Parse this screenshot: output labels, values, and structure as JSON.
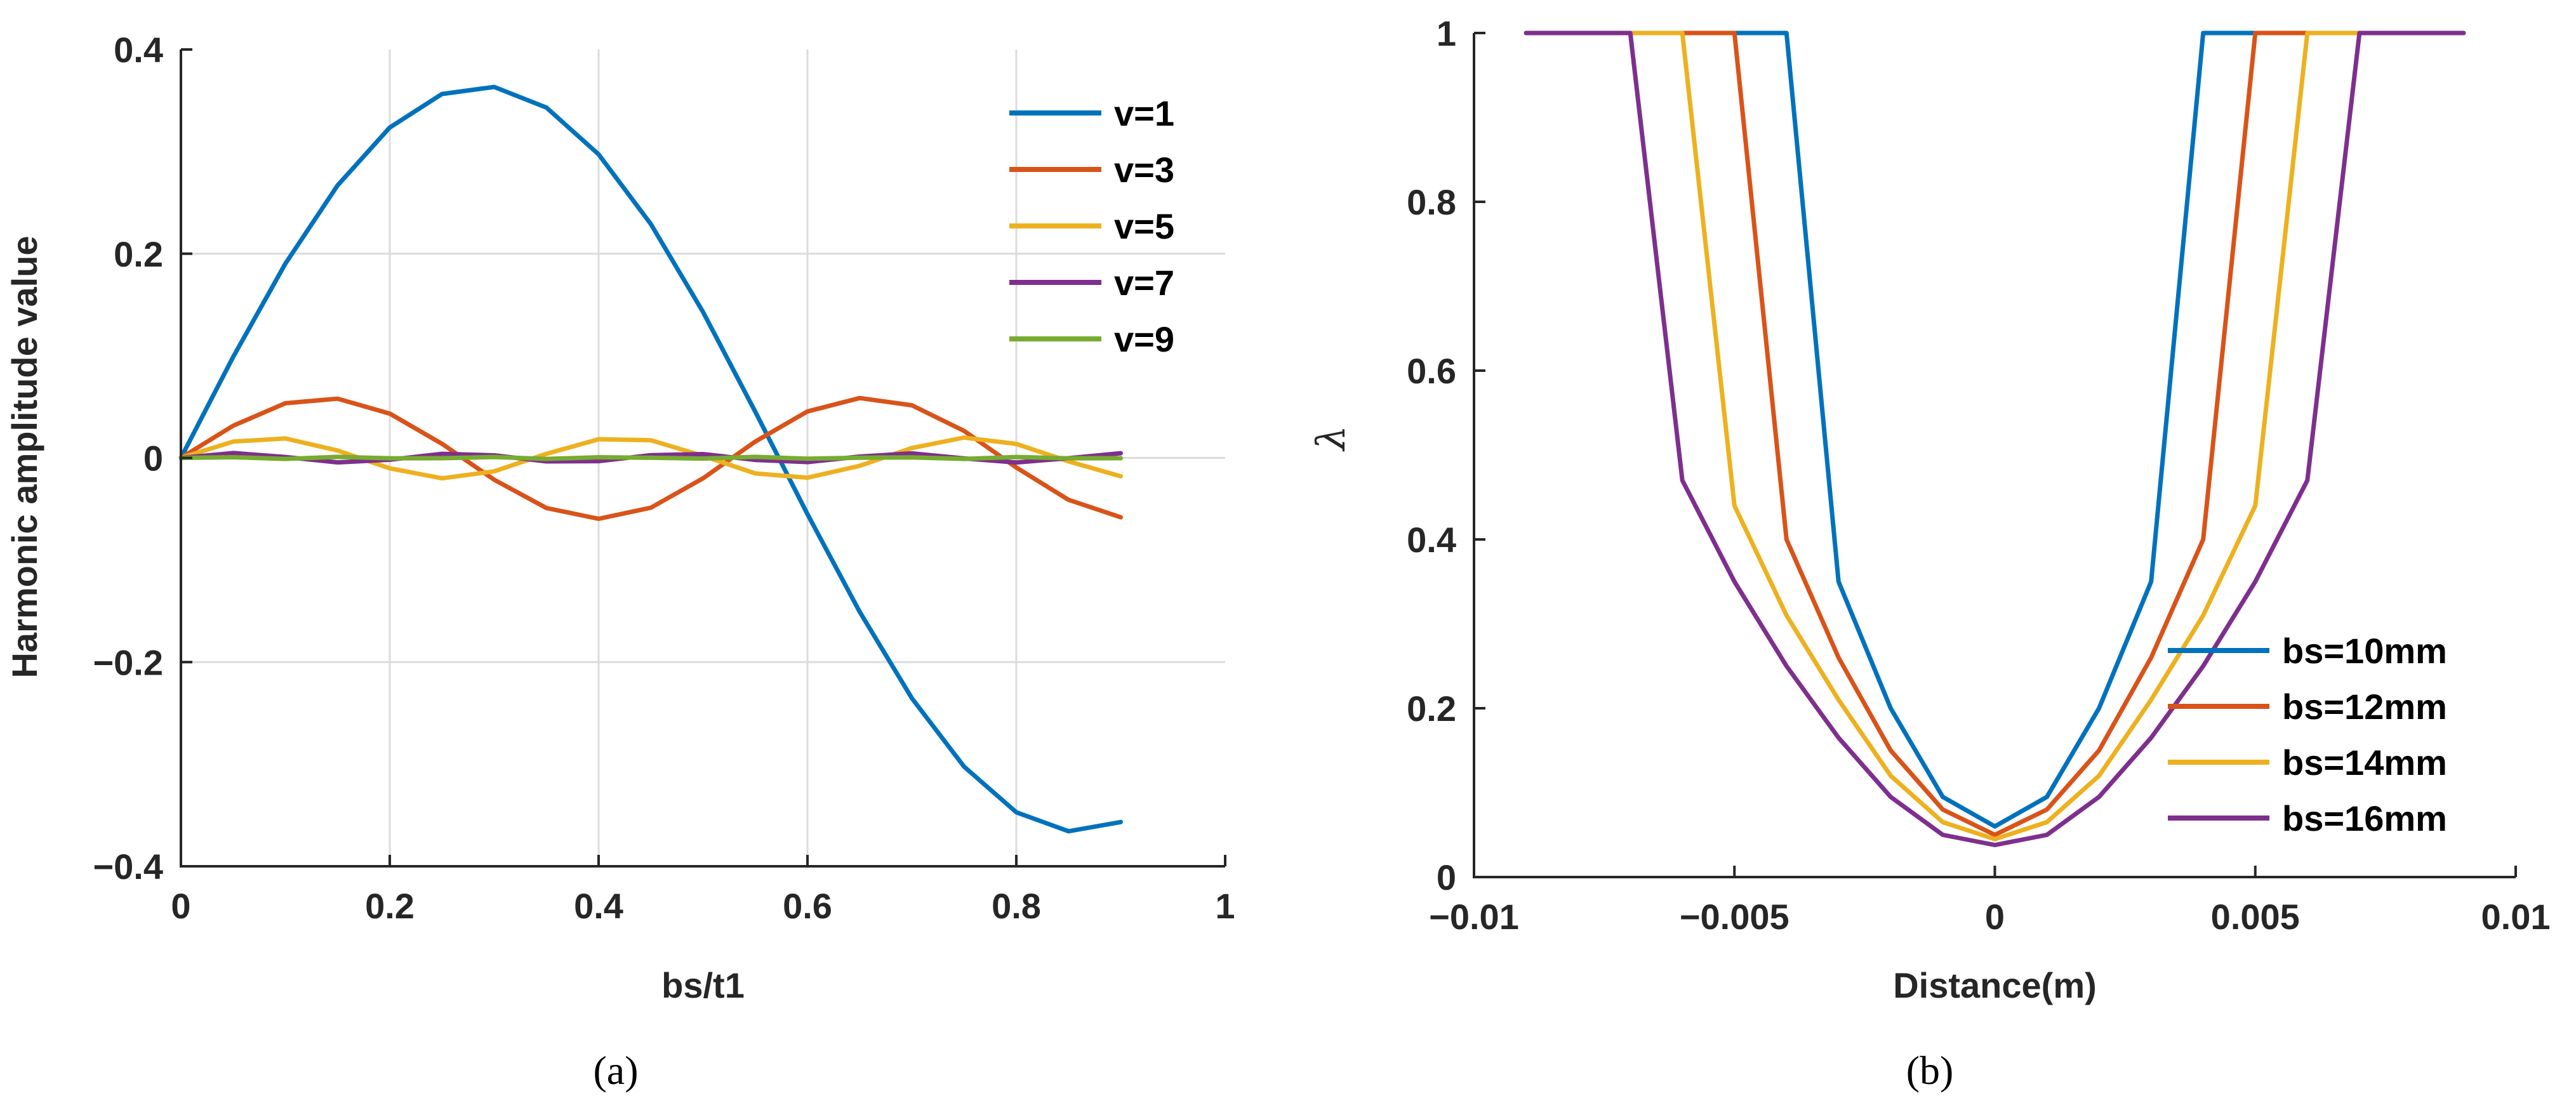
{
  "chart_data": [
    {
      "id": "a",
      "type": "line",
      "caption": "(a)",
      "title": "",
      "xlabel": "bs/t1",
      "ylabel": "Harmonic amplitude value",
      "xlim": [
        0,
        1
      ],
      "ylim": [
        -0.4,
        0.4
      ],
      "xticks": [
        0,
        0.2,
        0.4,
        0.6,
        0.8,
        1
      ],
      "xtick_labels": [
        "0",
        "0.2",
        "0.4",
        "0.6",
        "0.8",
        "1"
      ],
      "yticks": [
        -0.4,
        -0.2,
        0,
        0.2,
        0.4
      ],
      "ytick_labels": [
        "−0.4",
        "−0.2",
        "0",
        "0.2",
        "0.4"
      ],
      "grid": true,
      "legend_position": "top-right",
      "x": [
        0,
        0.05,
        0.1,
        0.15,
        0.2,
        0.25,
        0.3,
        0.35,
        0.4,
        0.45,
        0.5,
        0.55,
        0.6,
        0.65,
        0.7,
        0.75,
        0.8,
        0.85,
        0.9
      ],
      "series": [
        {
          "name": "v=1",
          "color": "#0072BD",
          "values": [
            0,
            0.0989,
            0.1902,
            0.2669,
            0.3236,
            0.3564,
            0.3633,
            0.3431,
            0.2973,
            0.229,
            0.1429,
            0.0452,
            -0.0551,
            -0.1508,
            -0.2354,
            -0.3025,
            -0.3471,
            -0.3657,
            -0.3567
          ]
        },
        {
          "name": "v=3",
          "color": "#D95319",
          "values": [
            0,
            0.0315,
            0.0535,
            0.058,
            0.0434,
            0.0138,
            -0.0214,
            -0.0491,
            -0.0597,
            -0.0488,
            -0.02,
            0.016,
            0.0455,
            0.0586,
            0.0515,
            0.0264,
            -0.0094,
            -0.0411,
            -0.0582
          ]
        },
        {
          "name": "v=5",
          "color": "#EDB120",
          "values": [
            0,
            0.016,
            0.019,
            0.0072,
            -0.0102,
            -0.02,
            -0.0132,
            0.004,
            0.0183,
            0.0173,
            0.002,
            -0.0152,
            -0.0194,
            -0.0078,
            0.0097,
            0.0199,
            0.0137,
            -0.0034,
            -0.018
          ]
        },
        {
          "name": "v=7",
          "color": "#7E2F8E",
          "values": [
            0,
            0.0048,
            0.0009,
            -0.0044,
            -0.0018,
            0.004,
            0.0025,
            -0.0034,
            -0.0032,
            0.0027,
            0.0037,
            -0.002,
            -0.0041,
            0.0013,
            0.0044,
            -0.0005,
            -0.0045,
            -0.0003,
            0.0046
          ]
        },
        {
          "name": "v=9",
          "color": "#77AC30",
          "values": [
            0,
            0.0006,
            -0.001,
            0.001,
            -0.0004,
            -0.0003,
            0.0009,
            -0.001,
            0.0006,
            0.0001,
            -0.0007,
            0.001,
            -0.0008,
            0.0002,
            0.0005,
            -0.001,
            0.0009,
            -0.0004,
            -0.0003
          ]
        }
      ]
    },
    {
      "id": "b",
      "type": "line",
      "caption": "(b)",
      "title": "",
      "xlabel": "Distance(m)",
      "ylabel": "λ",
      "xlim": [
        -0.01,
        0.01
      ],
      "ylim": [
        0,
        1
      ],
      "xticks": [
        -0.01,
        -0.005,
        0,
        0.005,
        0.01
      ],
      "xtick_labels": [
        "−0.01",
        "−0.005",
        "0",
        "0.005",
        "0.01"
      ],
      "yticks": [
        0,
        0.2,
        0.4,
        0.6,
        0.8,
        1
      ],
      "ytick_labels": [
        "0",
        "0.2",
        "0.4",
        "0.6",
        "0.8",
        "1"
      ],
      "grid": false,
      "legend_position": "bottom-right",
      "series": [
        {
          "name": "bs=10mm",
          "color": "#0072BD",
          "x": [
            -0.009,
            -0.004,
            -0.003,
            -0.002,
            -0.001,
            0,
            0.001,
            0.002,
            0.003,
            0.004,
            0.009
          ],
          "values": [
            1,
            1,
            0.35,
            0.2,
            0.095,
            0.06,
            0.095,
            0.2,
            0.35,
            1,
            1
          ]
        },
        {
          "name": "bs=12mm",
          "color": "#D95319",
          "x": [
            -0.009,
            -0.005,
            -0.004,
            -0.003,
            -0.002,
            -0.001,
            0,
            0.001,
            0.002,
            0.003,
            0.004,
            0.005,
            0.009
          ],
          "values": [
            1,
            1,
            0.4,
            0.26,
            0.15,
            0.08,
            0.05,
            0.08,
            0.15,
            0.26,
            0.4,
            1,
            1
          ]
        },
        {
          "name": "bs=14mm",
          "color": "#EDB120",
          "x": [
            -0.009,
            -0.006,
            -0.005,
            -0.004,
            -0.003,
            -0.002,
            -0.001,
            0,
            0.001,
            0.002,
            0.003,
            0.004,
            0.005,
            0.006,
            0.009
          ],
          "values": [
            1,
            1,
            0.44,
            0.31,
            0.21,
            0.12,
            0.065,
            0.045,
            0.065,
            0.12,
            0.21,
            0.31,
            0.44,
            1,
            1
          ]
        },
        {
          "name": "bs=16mm",
          "color": "#7E2F8E",
          "x": [
            -0.009,
            -0.007,
            -0.006,
            -0.005,
            -0.004,
            -0.003,
            -0.002,
            -0.001,
            0,
            0.001,
            0.002,
            0.003,
            0.004,
            0.005,
            0.006,
            0.007,
            0.009
          ],
          "values": [
            1,
            1,
            0.47,
            0.35,
            0.25,
            0.165,
            0.095,
            0.05,
            0.038,
            0.05,
            0.095,
            0.165,
            0.25,
            0.35,
            0.47,
            1,
            1
          ]
        }
      ]
    }
  ]
}
